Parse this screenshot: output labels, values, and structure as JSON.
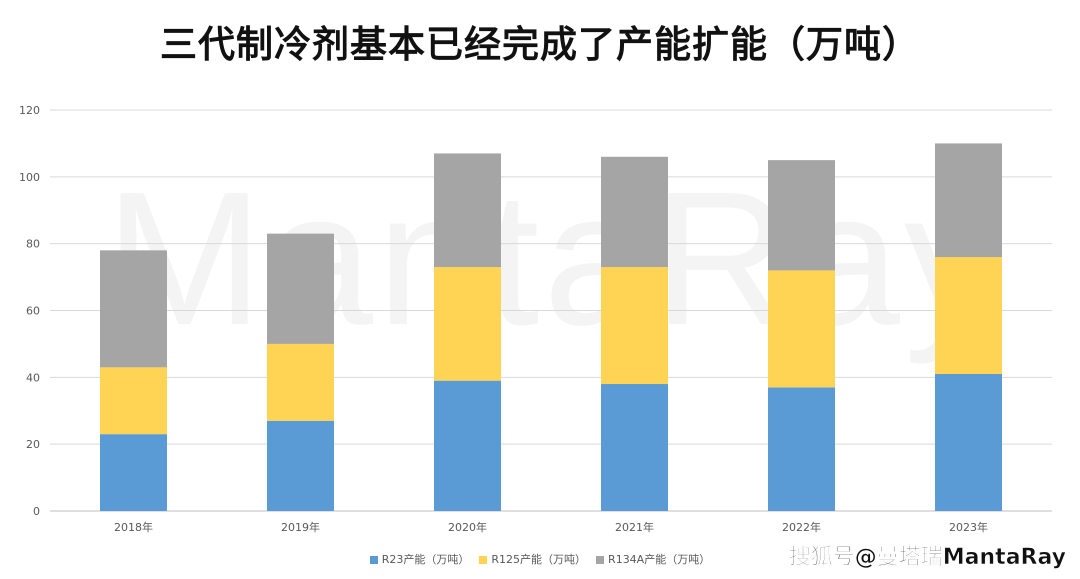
{
  "title": "三代制冷剂基本已经完成了产能扩能（万吨）",
  "watermark": "MantaRay",
  "brand_watermark": "搜狐号@曼塔瑞MantaRay",
  "chart_data": {
    "type": "bar",
    "stacked": true,
    "title": "三代制冷剂基本已经完成了产能扩能（万吨）",
    "categories": [
      "2018年",
      "2019年",
      "2020年",
      "2021年",
      "2022年",
      "2023年"
    ],
    "series": [
      {
        "name": "R23产能（万吨）",
        "color": "#5b9bd5",
        "values": [
          23,
          27,
          39,
          38,
          37,
          41
        ]
      },
      {
        "name": "R125产能（万吨）",
        "color": "#ffd455",
        "values": [
          20,
          23,
          34,
          35,
          35,
          35
        ]
      },
      {
        "name": "R134A产能（万吨）",
        "color": "#a5a5a5",
        "values": [
          35,
          33,
          34,
          33,
          33,
          34
        ]
      }
    ],
    "ylim": [
      0,
      120
    ],
    "yticks": [
      0,
      20,
      40,
      60,
      80,
      100,
      120
    ],
    "grid": true,
    "legend": "bottom"
  }
}
